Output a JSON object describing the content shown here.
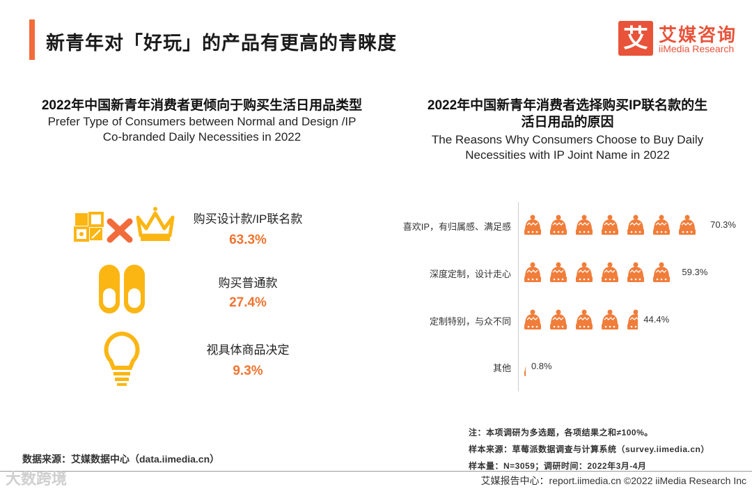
{
  "header": {
    "title": "新青年对「好玩」的产品有更高的青睐度",
    "logo_mark": "艾",
    "logo_cn": "艾媒咨询",
    "logo_en": "iiMedia Research"
  },
  "left_chart": {
    "title_cn": "2022年中国新青年消费者更倾向于购买生活日用品类型",
    "title_en_1": "Prefer Type of Consumers between Normal and Design /IP",
    "title_en_2": "Co-branded Daily Necessities in 2022",
    "items": [
      {
        "label": "购买设计款/IP联名款",
        "value": "63.3%",
        "icon": "design-ip-icon"
      },
      {
        "label": "购买普通款",
        "value": "27.4%",
        "icon": "slippers-icon"
      },
      {
        "label": "视具体商品决定",
        "value": "9.3%",
        "icon": "lightbulb-icon"
      }
    ]
  },
  "chart_data": {
    "type": "bar",
    "title": "2022年中国新青年消费者选择购买IP联名款的生活日用品的原因",
    "subtitle": "The Reasons Why Consumers Choose to Buy Daily Necessities with IP Joint Name in 2022",
    "title_cn_1": "2022年中国新青年消费者选择购买IP联名款的生",
    "title_cn_2": "活日用品的原因",
    "title_en_1": "The Reasons Why Consumers Choose to Buy Daily",
    "title_en_2": "Necessities with IP Joint Name in 2022",
    "orientation": "horizontal",
    "categories": [
      "喜欢IP，有归属感、满足感",
      "深度定制，设计走心",
      "定制特别，与众不同",
      "其他"
    ],
    "values": [
      70.3,
      59.3,
      44.4,
      0.8
    ],
    "value_labels": [
      "70.3%",
      "59.3%",
      "44.4%",
      "0.8%"
    ],
    "unit": "%",
    "xlim": [
      0,
      80
    ],
    "color": "#f07d3a"
  },
  "notes": {
    "line1": "注：本项调研为多选题，各项结果之和≠100%。",
    "line2": "样本来源：草莓派数据调查与计算系统（survey.iimedia.cn）",
    "line3": "样本量：N=3059；调研时间：2022年3月-4月"
  },
  "footer": {
    "source": "数据来源：艾媒数据中心（data.iimedia.cn）",
    "right": "艾媒报告中心：report.iimedia.cn  ©2022  iiMedia Research  Inc",
    "watermark": "大数跨境"
  }
}
